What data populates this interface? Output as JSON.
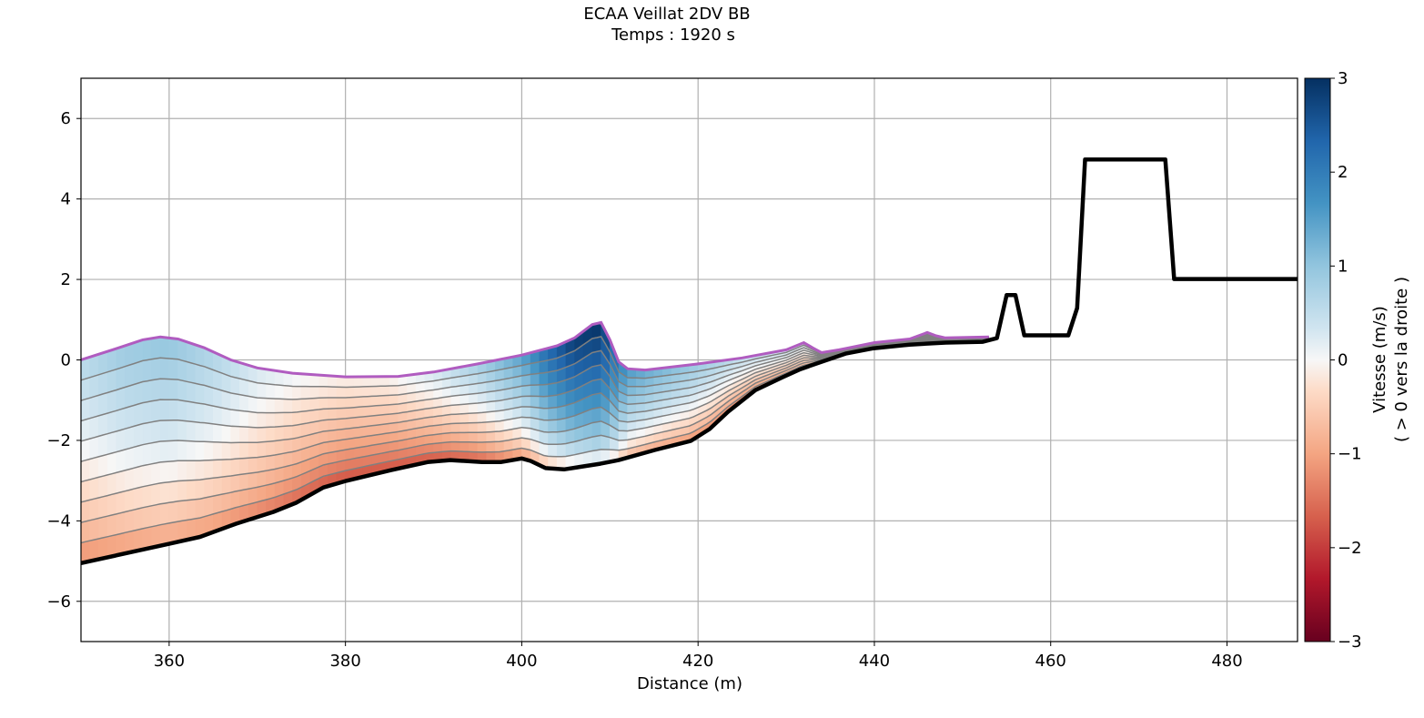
{
  "chart_data": {
    "type": "heatmap",
    "title": "ECAA Veillat 2DV BB",
    "subtitle": "Temps : 1920 s",
    "xlabel": "Distance (m)",
    "ylabel": "",
    "xlim": [
      350,
      488
    ],
    "ylim": [
      -7,
      7
    ],
    "xticks": [
      "360",
      "380",
      "400",
      "420",
      "440",
      "460",
      "480"
    ],
    "xtick_values": [
      360,
      380,
      400,
      420,
      440,
      460,
      480
    ],
    "yticks": [
      "−6",
      "−4",
      "−2",
      "0",
      "2",
      "4",
      "6"
    ],
    "ytick_values": [
      -6,
      -4,
      -2,
      0,
      2,
      4,
      6
    ],
    "grid": true,
    "colorbar": {
      "label_line1": "Vitesse (m/s)",
      "label_line2": "( > 0 vers la droite )",
      "range": [
        -3,
        3
      ],
      "ticks": [
        "−3",
        "−2",
        "−1",
        "0",
        "1",
        "2",
        "3"
      ],
      "tick_values": [
        -3,
        -2,
        -1,
        0,
        1,
        2,
        3
      ],
      "colormap": "RdBu",
      "position": "right"
    },
    "layers": 10,
    "bed_profile": [
      [
        350,
        -5.05
      ],
      [
        360,
        -4.57
      ],
      [
        363.5,
        -4.4
      ],
      [
        367.6,
        -4.07
      ],
      [
        371.8,
        -3.78
      ],
      [
        374.4,
        -3.55
      ],
      [
        377.5,
        -3.17
      ],
      [
        380,
        -3.01
      ],
      [
        385.2,
        -2.74
      ],
      [
        389.3,
        -2.54
      ],
      [
        391.9,
        -2.49
      ],
      [
        395.5,
        -2.54
      ],
      [
        397.6,
        -2.54
      ],
      [
        400,
        -2.45
      ],
      [
        401,
        -2.51
      ],
      [
        402.7,
        -2.69
      ],
      [
        404.8,
        -2.72
      ],
      [
        408.9,
        -2.58
      ],
      [
        411,
        -2.49
      ],
      [
        415.1,
        -2.24
      ],
      [
        419.2,
        -2.01
      ],
      [
        421.3,
        -1.72
      ],
      [
        423.4,
        -1.29
      ],
      [
        426.5,
        -0.75
      ],
      [
        429.6,
        -0.43
      ],
      [
        431.6,
        -0.23
      ],
      [
        433.7,
        -0.07
      ],
      [
        436.8,
        0.16
      ],
      [
        439.9,
        0.29
      ],
      [
        444,
        0.38
      ],
      [
        448.1,
        0.43
      ],
      [
        452.3,
        0.45
      ],
      [
        453.9,
        0.54
      ],
      [
        455,
        1.61
      ],
      [
        456,
        1.61
      ],
      [
        457,
        0.61
      ],
      [
        462,
        0.61
      ],
      [
        463,
        1.29
      ],
      [
        463.9,
        4.98
      ],
      [
        473,
        4.98
      ],
      [
        474,
        2.01
      ],
      [
        488,
        2.01
      ]
    ],
    "water_surface": [
      [
        350,
        0
      ],
      [
        354,
        0.28
      ],
      [
        357,
        0.5
      ],
      [
        359,
        0.57
      ],
      [
        361,
        0.52
      ],
      [
        364,
        0.3
      ],
      [
        367,
        0.0
      ],
      [
        370,
        -0.2
      ],
      [
        374,
        -0.33
      ],
      [
        380,
        -0.42
      ],
      [
        386,
        -0.41
      ],
      [
        390,
        -0.3
      ],
      [
        395,
        -0.1
      ],
      [
        400,
        0.12
      ],
      [
        404,
        0.35
      ],
      [
        406,
        0.55
      ],
      [
        408,
        0.88
      ],
      [
        409,
        0.93
      ],
      [
        410,
        0.5
      ],
      [
        411,
        -0.05
      ],
      [
        412,
        -0.22
      ],
      [
        414,
        -0.25
      ],
      [
        420,
        -0.1
      ],
      [
        425,
        0.05
      ],
      [
        430,
        0.25
      ],
      [
        432,
        0.43
      ],
      [
        433,
        0.3
      ],
      [
        434,
        0.18
      ],
      [
        436,
        0.25
      ],
      [
        440,
        0.43
      ],
      [
        444,
        0.52
      ],
      [
        446,
        0.68
      ],
      [
        447,
        0.6
      ],
      [
        448,
        0.55
      ],
      [
        453,
        0.57
      ]
    ],
    "velocity": {
      "x": [
        350,
        355,
        360,
        365,
        370,
        375,
        380,
        385,
        390,
        395,
        400,
        403,
        406,
        409,
        411,
        412,
        415,
        420,
        425,
        430,
        433,
        440,
        453
      ],
      "bottom": [
        -1.4,
        -1.3,
        -1.2,
        -1.3,
        -1.5,
        -1.8,
        -2.0,
        -2.0,
        -2.0,
        -1.9,
        -1.4,
        -0.8,
        -0.5,
        -0.3,
        -0.6,
        -1.0,
        -1.2,
        -1.4,
        -1.5,
        -1.4,
        -1.0,
        -0.3,
        -0.2
      ],
      "surface": [
        0.6,
        0.9,
        1.0,
        0.7,
        0.3,
        0.05,
        -0.1,
        -0.05,
        0.3,
        0.8,
        1.5,
        2.3,
        2.9,
        3.0,
        2.0,
        1.6,
        1.3,
        0.9,
        0.5,
        0.4,
        0.2,
        0.1,
        0.05
      ]
    },
    "colors": {
      "surface_line": "#b05cc0",
      "bed_line": "#000000",
      "layer_line": "#808080",
      "grid": "#b0b0b0"
    }
  }
}
